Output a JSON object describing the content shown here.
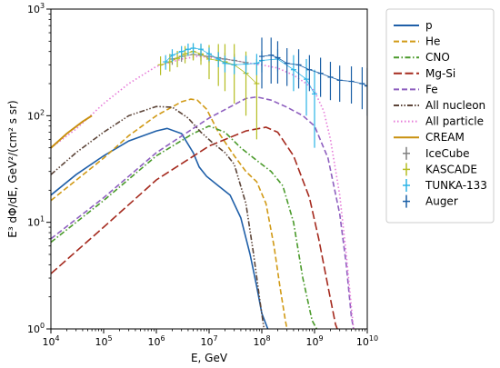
{
  "chart_data": {
    "type": "line",
    "title": "",
    "xlabel": "E, GeV",
    "ylabel": "E³ dΦ/dE, GeV²/(cm² s sr)",
    "xscale": "log",
    "yscale": "log",
    "xlim": [
      10000,
      10000000000
    ],
    "ylim": [
      1,
      1000
    ],
    "grid": false,
    "legend_position": "outside-right",
    "x_ticks": [
      {
        "value": 10000,
        "base": "10",
        "exp": "4"
      },
      {
        "value": 100000,
        "base": "10",
        "exp": "5"
      },
      {
        "value": 1000000,
        "base": "10",
        "exp": "6"
      },
      {
        "value": 10000000,
        "base": "10",
        "exp": "7"
      },
      {
        "value": 100000000,
        "base": "10",
        "exp": "8"
      },
      {
        "value": 1000000000,
        "base": "10",
        "exp": "9"
      },
      {
        "value": 10000000000,
        "base": "10",
        "exp": "10"
      }
    ],
    "y_ticks": [
      {
        "value": 1,
        "base": "10",
        "exp": "0"
      },
      {
        "value": 10,
        "base": "10",
        "exp": "1"
      },
      {
        "value": 100,
        "base": "10",
        "exp": "2"
      },
      {
        "value": 1000,
        "base": "10",
        "exp": "3"
      }
    ],
    "series": [
      {
        "name": "p",
        "kind": "line",
        "color": "#1f5fa8",
        "dash": "solid",
        "points": [
          [
            10000,
            18
          ],
          [
            30000,
            28
          ],
          [
            100000,
            42
          ],
          [
            300000,
            58
          ],
          [
            1000000,
            72
          ],
          [
            1600000,
            76
          ],
          [
            3000000,
            68
          ],
          [
            5000000,
            45
          ],
          [
            6500000,
            33
          ],
          [
            9000000,
            27
          ],
          [
            15000000,
            22
          ],
          [
            25000000,
            18
          ],
          [
            40000000,
            11
          ],
          [
            60000000,
            5
          ],
          [
            80000000,
            2.5
          ],
          [
            100000000,
            1.4
          ],
          [
            130000000,
            1
          ]
        ]
      },
      {
        "name": "He",
        "kind": "line",
        "color": "#d19a16",
        "dash": "dashed",
        "points": [
          [
            10000,
            16
          ],
          [
            100000,
            40
          ],
          [
            300000,
            65
          ],
          [
            1000000,
            100
          ],
          [
            3000000,
            135
          ],
          [
            4500000,
            143
          ],
          [
            6000000,
            140
          ],
          [
            9000000,
            115
          ],
          [
            15000000,
            70
          ],
          [
            30000000,
            42
          ],
          [
            50000000,
            30
          ],
          [
            80000000,
            24
          ],
          [
            120000000,
            15
          ],
          [
            170000000,
            6
          ],
          [
            220000000,
            2.5
          ],
          [
            280000000,
            1.2
          ],
          [
            300000000,
            1
          ]
        ]
      },
      {
        "name": "CNO",
        "kind": "line",
        "color": "#4a9a2a",
        "dash": "dashdot",
        "points": [
          [
            10000,
            6.5
          ],
          [
            100000,
            16
          ],
          [
            1000000,
            42
          ],
          [
            5000000,
            68
          ],
          [
            10000000,
            80
          ],
          [
            20000000,
            70
          ],
          [
            40000000,
            50
          ],
          [
            80000000,
            38
          ],
          [
            150000000,
            30
          ],
          [
            250000000,
            22
          ],
          [
            400000000,
            10
          ],
          [
            600000000,
            3
          ],
          [
            900000000,
            1.2
          ],
          [
            1100000000,
            1
          ]
        ]
      },
      {
        "name": "Mg-Si",
        "kind": "line",
        "color": "#a52a1e",
        "dash": "longdash",
        "points": [
          [
            10000,
            3.3
          ],
          [
            100000,
            9
          ],
          [
            1000000,
            25
          ],
          [
            10000000,
            52
          ],
          [
            50000000,
            72
          ],
          [
            120000000,
            78
          ],
          [
            200000000,
            70
          ],
          [
            400000000,
            42
          ],
          [
            800000000,
            17
          ],
          [
            1200000000,
            7
          ],
          [
            1800000000,
            2.5
          ],
          [
            2500000000,
            1.1
          ],
          [
            2700000000,
            1
          ]
        ]
      },
      {
        "name": "Fe",
        "kind": "line",
        "color": "#8e5fbf",
        "dash": "dashed",
        "points": [
          [
            10000,
            7
          ],
          [
            100000,
            17
          ],
          [
            1000000,
            45
          ],
          [
            10000000,
            95
          ],
          [
            50000000,
            145
          ],
          [
            80000000,
            150
          ],
          [
            150000000,
            140
          ],
          [
            300000000,
            120
          ],
          [
            600000000,
            100
          ],
          [
            1000000000,
            80
          ],
          [
            1800000000,
            40
          ],
          [
            3000000000,
            12
          ],
          [
            4000000000,
            4
          ],
          [
            5000000000,
            1.3
          ],
          [
            5500000000,
            1
          ]
        ]
      },
      {
        "name": "All nucleon",
        "kind": "line",
        "color": "#5c4438",
        "dash": "dashdotdot",
        "points": [
          [
            10000,
            28
          ],
          [
            30000,
            45
          ],
          [
            100000,
            70
          ],
          [
            300000,
            100
          ],
          [
            1000000,
            122
          ],
          [
            2000000,
            120
          ],
          [
            4000000,
            95
          ],
          [
            7000000,
            70
          ],
          [
            12000000,
            55
          ],
          [
            20000000,
            45
          ],
          [
            30000000,
            35
          ],
          [
            50000000,
            15
          ],
          [
            70000000,
            5
          ],
          [
            90000000,
            2
          ],
          [
            110000000,
            1
          ]
        ]
      },
      {
        "name": "All particle",
        "kind": "line",
        "color": "#e67ad8",
        "dash": "dotted",
        "points": [
          [
            10000,
            50
          ],
          [
            30000,
            75
          ],
          [
            100000,
            130
          ],
          [
            300000,
            200
          ],
          [
            1000000,
            290
          ],
          [
            3000000,
            340
          ],
          [
            6000000,
            360
          ],
          [
            10000000,
            355
          ],
          [
            30000000,
            330
          ],
          [
            60000000,
            310
          ],
          [
            100000000,
            300
          ],
          [
            200000000,
            280
          ],
          [
            400000000,
            240
          ],
          [
            700000000,
            200
          ],
          [
            1000000000,
            170
          ],
          [
            1500000000,
            110
          ],
          [
            2000000000,
            60
          ],
          [
            3000000000,
            18
          ],
          [
            4000000000,
            5
          ],
          [
            5000000000,
            1.6
          ],
          [
            5500000000,
            1
          ]
        ]
      },
      {
        "name": "CREAM",
        "kind": "line",
        "color": "#c9900f",
        "dash": "solid",
        "width": 2,
        "points": [
          [
            10000,
            50
          ],
          [
            20000,
            68
          ],
          [
            40000,
            88
          ],
          [
            60000,
            100
          ]
        ]
      },
      {
        "name": "IceCube",
        "kind": "errorbar",
        "color": "#7f7f7f",
        "points": [
          [
            2000000,
            340,
            40
          ],
          [
            3000000,
            360,
            40
          ],
          [
            5000000,
            375,
            40
          ],
          [
            7000000,
            370,
            45
          ],
          [
            10000000,
            360,
            45
          ],
          [
            15000000,
            350,
            45
          ],
          [
            20000000,
            340,
            50
          ],
          [
            30000000,
            330,
            50
          ],
          [
            50000000,
            315,
            50
          ]
        ]
      },
      {
        "name": "KASCADE",
        "kind": "errorbar",
        "color": "#b5bd22",
        "points": [
          [
            1200000,
            300,
            60
          ],
          [
            1800000,
            320,
            60
          ],
          [
            2500000,
            345,
            60
          ],
          [
            3500000,
            380,
            70
          ],
          [
            5000000,
            400,
            70
          ],
          [
            7000000,
            380,
            80
          ],
          [
            10000000,
            340,
            120
          ],
          [
            15000000,
            330,
            140
          ],
          [
            20000000,
            320,
            150
          ],
          [
            30000000,
            300,
            170
          ],
          [
            50000000,
            250,
            150
          ],
          [
            80000000,
            200,
            140
          ]
        ]
      },
      {
        "name": "TUNKA-133",
        "kind": "errorbar",
        "color": "#2ab3e6",
        "points": [
          [
            1500000,
            320,
            50
          ],
          [
            2000000,
            370,
            50
          ],
          [
            3000000,
            400,
            50
          ],
          [
            4000000,
            420,
            55
          ],
          [
            5000000,
            430,
            50
          ],
          [
            7000000,
            420,
            55
          ],
          [
            10000000,
            380,
            55
          ],
          [
            15000000,
            340,
            55
          ],
          [
            20000000,
            310,
            55
          ],
          [
            30000000,
            300,
            55
          ],
          [
            50000000,
            305,
            60
          ],
          [
            80000000,
            310,
            70
          ],
          [
            100000000,
            330,
            75
          ],
          [
            200000000,
            340,
            80
          ],
          [
            400000000,
            270,
            100
          ],
          [
            700000000,
            220,
            120
          ],
          [
            1000000000,
            160,
            110
          ]
        ]
      },
      {
        "name": "Auger",
        "kind": "errorbar",
        "color": "#1a5fa6",
        "points": [
          [
            100000000,
            360,
            180
          ],
          [
            150000000,
            370,
            170
          ],
          [
            200000000,
            350,
            150
          ],
          [
            300000000,
            310,
            120
          ],
          [
            500000000,
            300,
            120
          ],
          [
            800000000,
            270,
            100
          ],
          [
            1300000000,
            250,
            100
          ],
          [
            2000000000,
            230,
            90
          ],
          [
            3000000000,
            215,
            80
          ],
          [
            5000000000,
            210,
            80
          ],
          [
            8000000000,
            200,
            85
          ],
          [
            10000000000,
            190,
            90
          ]
        ]
      }
    ]
  }
}
